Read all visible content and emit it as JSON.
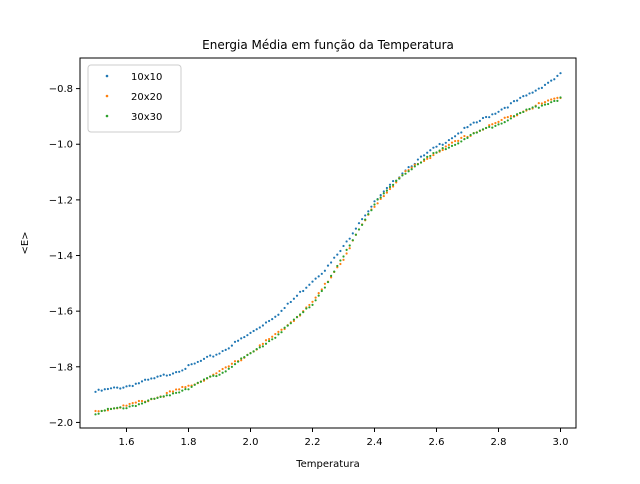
{
  "chart_data": {
    "type": "scatter",
    "title": "Energia Média em função da Temperatura",
    "xlabel": "Temperatura",
    "ylabel": "<E>",
    "xlim": [
      1.45,
      3.05
    ],
    "ylim": [
      -2.02,
      -0.69
    ],
    "xticks": [
      1.6,
      1.8,
      2.0,
      2.2,
      2.4,
      2.6,
      2.8,
      3.0
    ],
    "xtick_labels": [
      "1.6",
      "1.8",
      "2.0",
      "2.2",
      "2.4",
      "2.6",
      "2.8",
      "3.0"
    ],
    "yticks": [
      -2.0,
      -1.8,
      -1.6,
      -1.4,
      -1.2,
      -1.0,
      -0.8
    ],
    "ytick_labels": [
      "−2.0",
      "−1.8",
      "−1.6",
      "−1.4",
      "−1.2",
      "−1.0",
      "−0.8"
    ],
    "grid": false,
    "legend_position": "top-left",
    "x": [
      1.5,
      1.6,
      1.7,
      1.8,
      1.9,
      2.0,
      2.1,
      2.2,
      2.25,
      2.3,
      2.35,
      2.4,
      2.5,
      2.6,
      2.7,
      2.8,
      2.9,
      3.0
    ],
    "series": [
      {
        "name": "10x10",
        "color": "#1f77b4",
        "values": [
          -1.89,
          -1.87,
          -1.84,
          -1.8,
          -1.75,
          -1.68,
          -1.6,
          -1.49,
          -1.44,
          -1.37,
          -1.28,
          -1.21,
          -1.09,
          -1.01,
          -0.94,
          -0.88,
          -0.82,
          -0.75
        ]
      },
      {
        "name": "20x20",
        "color": "#ff7f0e",
        "values": [
          -1.96,
          -1.94,
          -1.91,
          -1.87,
          -1.82,
          -1.75,
          -1.67,
          -1.57,
          -1.49,
          -1.41,
          -1.31,
          -1.22,
          -1.1,
          -1.03,
          -0.97,
          -0.92,
          -0.87,
          -0.83
        ]
      },
      {
        "name": "30x30",
        "color": "#2ca02c",
        "values": [
          -1.965,
          -1.945,
          -1.915,
          -1.875,
          -1.825,
          -1.755,
          -1.675,
          -1.575,
          -1.495,
          -1.405,
          -1.305,
          -1.215,
          -1.1,
          -1.03,
          -0.975,
          -0.925,
          -0.875,
          -0.835
        ]
      }
    ]
  }
}
